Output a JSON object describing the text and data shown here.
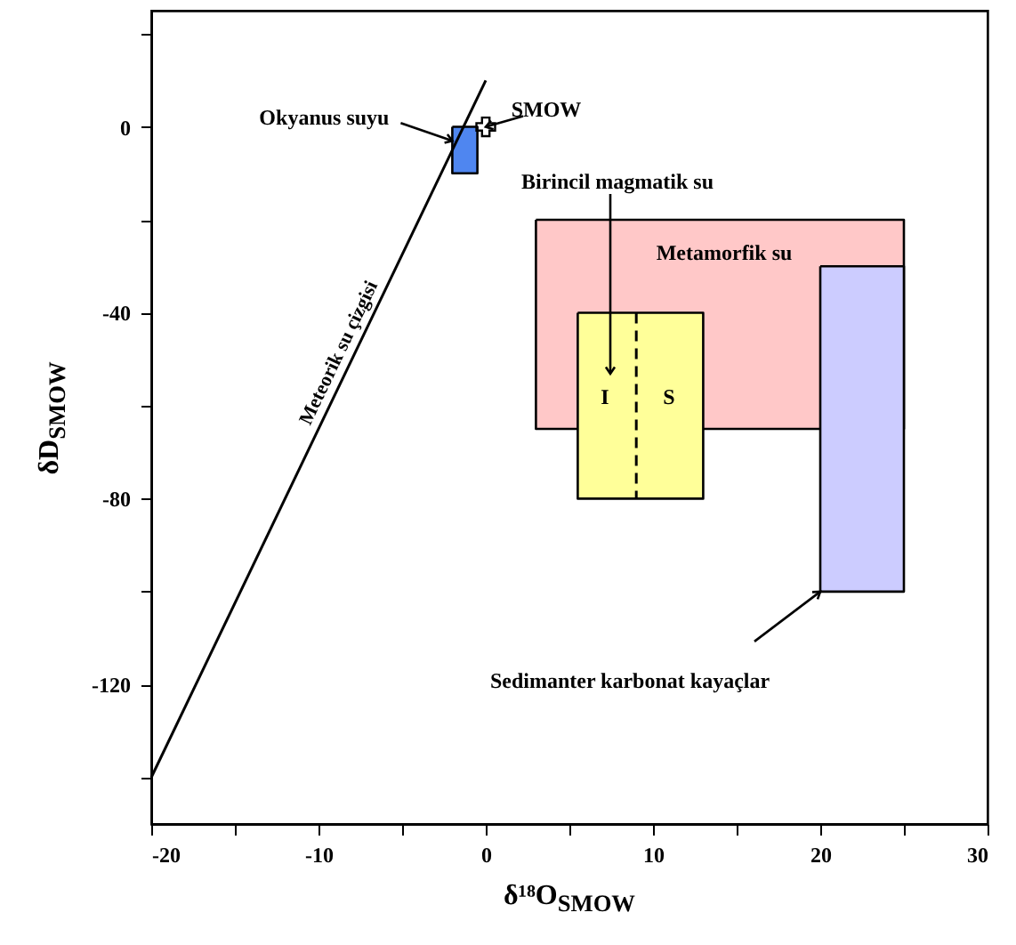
{
  "chart_data": {
    "type": "line",
    "xlabel": "δ¹⁸O$_{SMOW}$",
    "ylabel": "δD$_{SMOW}$",
    "xlim": [
      -20,
      30
    ],
    "ylim": [
      -150,
      25
    ],
    "xticks": [
      -20,
      {
        "value": -15,
        "label": null
      },
      -10,
      {
        "value": -5,
        "label": null
      },
      0,
      {
        "value": 5,
        "label": null
      },
      10,
      {
        "value": 15,
        "label": null
      },
      20,
      {
        "value": 25,
        "label": null
      },
      30
    ],
    "yticks": [
      {
        "value": 20,
        "label": null
      },
      0,
      {
        "value": -20,
        "label": null
      },
      -40,
      {
        "value": -60,
        "label": null
      },
      -80,
      {
        "value": -100,
        "label": null
      },
      -120,
      {
        "value": -140,
        "label": null
      }
    ],
    "series": [
      {
        "type": "area",
        "color": "#ffc8c8",
        "x": [
          3,
          25,
          25,
          3,
          3
        ],
        "values": [
          -20,
          -20,
          -65,
          -65,
          -20
        ]
      },
      {
        "type": "area",
        "color": "#ffff99",
        "x": [
          5.5,
          13,
          13,
          5.5,
          5.5
        ],
        "values": [
          -40,
          -40,
          -80,
          -80,
          -40
        ]
      },
      {
        "color": "#000000",
        "line_style": "dashed",
        "x": [
          9,
          9
        ],
        "values": [
          -40,
          -80
        ]
      },
      {
        "type": "area",
        "color": "#ccccff",
        "x": [
          20,
          25,
          25,
          20,
          20
        ],
        "values": [
          -30,
          -30,
          -100,
          -100,
          -30
        ]
      },
      {
        "type": "area",
        "color": "#4f86f0",
        "x": [
          -2,
          -0.5,
          -0.5,
          -2,
          -2
        ],
        "values": [
          0,
          0,
          -10,
          -10,
          0
        ]
      },
      {
        "name": "Meteorik su çizgisi",
        "color": "#000000",
        "x": [
          -20,
          0
        ],
        "values": [
          -140,
          10
        ]
      },
      {
        "type": "scatter",
        "color": "#000000",
        "marker": "cross",
        "x": [
          0
        ],
        "values": [
          0
        ]
      }
    ],
    "annotations": [
      {
        "text": "Okyanus suyu",
        "x": -2,
        "y": -3
      },
      {
        "text": "SMOW",
        "x": 0,
        "y": 0
      },
      "Birincil magmatik su",
      "Metamorfik su",
      "I",
      "S",
      {
        "text": "Sedimanter karbonat kayaçlar",
        "x": 20,
        "y": -100
      }
    ]
  }
}
